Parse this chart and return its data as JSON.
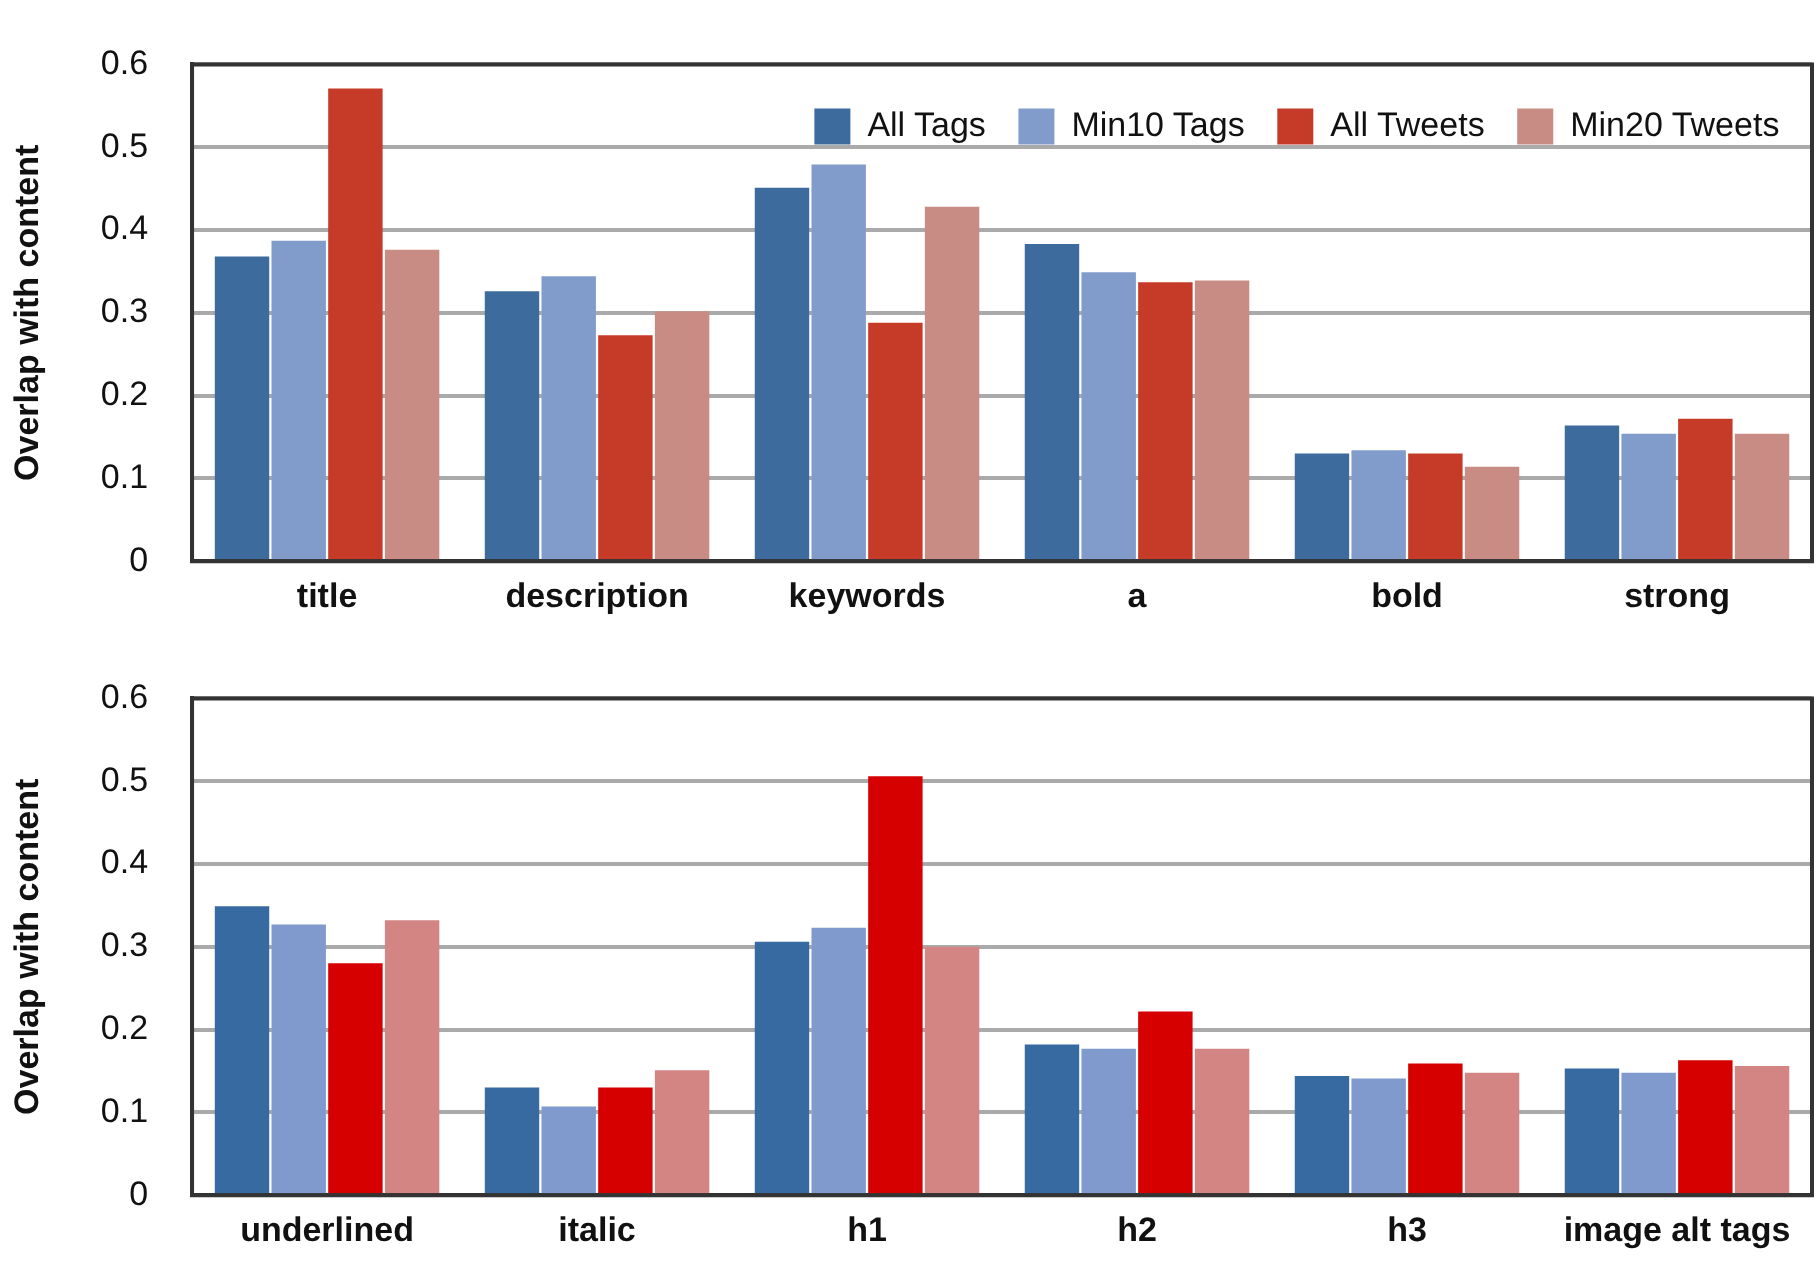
{
  "chart_data": [
    {
      "type": "bar",
      "ylabel": "Overlap with content",
      "categories": [
        "title",
        "description",
        "keywords",
        "a",
        "bold",
        "strong"
      ],
      "series": [
        {
          "name": "All Tags",
          "color": "#3d6b9e",
          "values": [
            0.368,
            0.326,
            0.451,
            0.383,
            0.13,
            0.164
          ]
        },
        {
          "name": "Min10 Tags",
          "color": "#819cca",
          "values": [
            0.387,
            0.344,
            0.479,
            0.349,
            0.134,
            0.154
          ]
        },
        {
          "name": "All Tweets",
          "color": "#c63a28",
          "values": [
            0.571,
            0.273,
            0.288,
            0.337,
            0.13,
            0.172
          ]
        },
        {
          "name": "Min20 Tweets",
          "color": "#c98c85",
          "values": [
            0.376,
            0.302,
            0.428,
            0.339,
            0.114,
            0.154
          ]
        }
      ],
      "ylim": [
        0,
        0.6
      ],
      "yticks": [
        0,
        0.1,
        0.2,
        0.3,
        0.4,
        0.5,
        0.6
      ],
      "grid": "y",
      "legend": "top right"
    },
    {
      "type": "bar",
      "ylabel": "Overlap with content",
      "categories": [
        "underlined",
        "italic",
        "h1",
        "h2",
        "h3",
        "image alt tags"
      ],
      "series": [
        {
          "color": "#376aa0",
          "values": [
            0.349,
            0.13,
            0.306,
            0.182,
            0.144,
            0.153
          ]
        },
        {
          "color": "#819ace",
          "values": [
            0.327,
            0.107,
            0.323,
            0.177,
            0.141,
            0.148
          ]
        },
        {
          "color": "#d60000",
          "values": [
            0.28,
            0.13,
            0.506,
            0.222,
            0.159,
            0.163
          ]
        },
        {
          "color": "#d28583",
          "values": [
            0.332,
            0.151,
            0.3,
            0.177,
            0.148,
            0.156
          ]
        }
      ],
      "ylim": [
        0,
        0.6
      ],
      "yticks": [
        0,
        0.1,
        0.2,
        0.3,
        0.4,
        0.5,
        0.6
      ],
      "grid": "y"
    }
  ]
}
